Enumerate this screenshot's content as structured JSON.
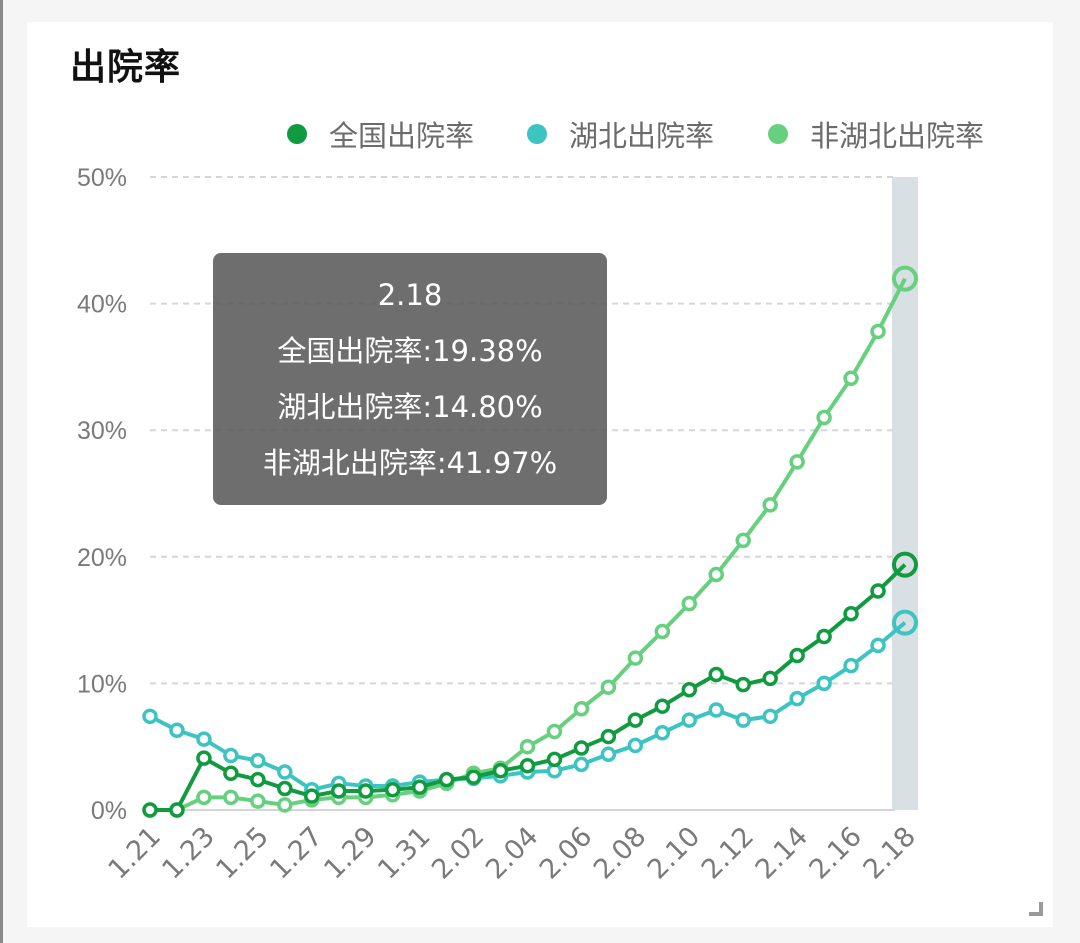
{
  "title": "出院率",
  "legend": [
    {
      "label": "全国出院率",
      "color": "#119a3f"
    },
    {
      "label": "湖北出院率",
      "color": "#3dc4c0"
    },
    {
      "label": "非湖北出院率",
      "color": "#67d07f"
    }
  ],
  "tooltip": {
    "date": "2.18",
    "lines": [
      "全国出院率:19.38%",
      "湖北出院率:14.80%",
      "非湖北出院率:41.97%"
    ]
  },
  "colors": {
    "national": "#119a3f",
    "hubei": "#3dc4c0",
    "non_hubei": "#67d07f",
    "highlight_band": "#d5dde0",
    "grid": "#d6d6d6",
    "axis_text": "#7a7a7a"
  },
  "chart_data": {
    "type": "line",
    "title": "出院率",
    "xlabel": "",
    "ylabel": "",
    "ylim": [
      0,
      50
    ],
    "yticks": [
      "0%",
      "10%",
      "20%",
      "30%",
      "40%",
      "50%"
    ],
    "grid": true,
    "legend_position": "top-right",
    "x": [
      "1.21",
      "1.22",
      "1.23",
      "1.24",
      "1.25",
      "1.26",
      "1.27",
      "1.28",
      "1.29",
      "1.30",
      "1.31",
      "2.01",
      "2.02",
      "2.03",
      "2.04",
      "2.05",
      "2.06",
      "2.07",
      "2.08",
      "2.09",
      "2.10",
      "2.11",
      "2.12",
      "2.13",
      "2.14",
      "2.15",
      "2.16",
      "2.17",
      "2.18"
    ],
    "xtick_labels": [
      "1.21",
      "1.23",
      "1.25",
      "1.27",
      "1.29",
      "1.31",
      "2.02",
      "2.04",
      "2.06",
      "2.08",
      "2.10",
      "2.12",
      "2.14",
      "2.16",
      "2.18"
    ],
    "series": [
      {
        "name": "全国出院率",
        "values": [
          0,
          0,
          4.1,
          2.9,
          2.4,
          1.7,
          1.1,
          1.5,
          1.5,
          1.6,
          1.8,
          2.4,
          2.6,
          3.1,
          3.5,
          4.0,
          4.9,
          5.8,
          7.1,
          8.2,
          9.5,
          10.7,
          9.9,
          10.4,
          12.2,
          13.7,
          15.5,
          17.3,
          19.38
        ]
      },
      {
        "name": "湖北出院率",
        "values": [
          7.4,
          6.3,
          5.6,
          4.3,
          3.9,
          3.0,
          1.6,
          2.1,
          1.9,
          1.9,
          2.2,
          2.4,
          2.5,
          2.7,
          3.0,
          3.1,
          3.6,
          4.4,
          5.1,
          6.1,
          7.1,
          7.9,
          7.1,
          7.4,
          8.8,
          10.0,
          11.4,
          13.0,
          14.8
        ]
      },
      {
        "name": "非湖北出院率",
        "values": [
          0,
          0,
          1.0,
          1.0,
          0.7,
          0.4,
          0.8,
          1.0,
          1.0,
          1.2,
          1.5,
          2.1,
          2.9,
          3.3,
          5.0,
          6.2,
          8.0,
          9.7,
          12.0,
          14.1,
          16.3,
          18.6,
          21.3,
          24.1,
          27.5,
          31.0,
          34.1,
          37.8,
          41.97
        ]
      }
    ],
    "highlighted_index": 28
  }
}
